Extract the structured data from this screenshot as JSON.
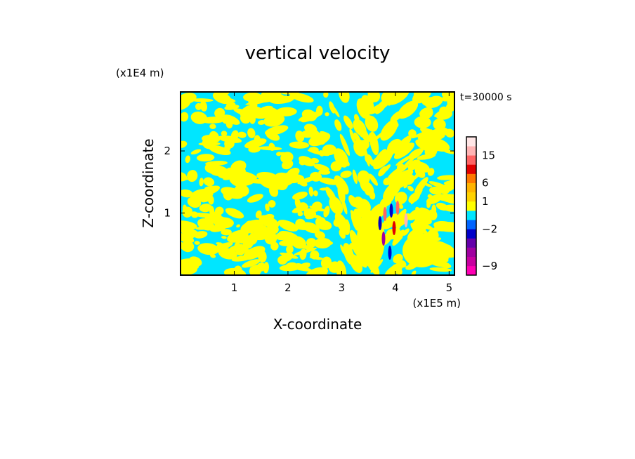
{
  "chart_data": {
    "type": "heatmap",
    "title": "vertical velocity",
    "xlabel": "X-coordinate",
    "ylabel": "Z-coordinate",
    "x_unit": "(x1E5 m)",
    "y_unit": "(x1E4 m)",
    "time_label": "t=30000 s",
    "xlim": [
      0,
      5.1
    ],
    "ylim": [
      0,
      2.95
    ],
    "x_ticks": [
      {
        "value": 1,
        "label": "1"
      },
      {
        "value": 2,
        "label": "2"
      },
      {
        "value": 3,
        "label": "3"
      },
      {
        "value": 4,
        "label": "4"
      },
      {
        "value": 5,
        "label": "5"
      }
    ],
    "y_ticks": [
      {
        "value": 1,
        "label": "1"
      },
      {
        "value": 2,
        "label": "2"
      }
    ],
    "colorbar": {
      "levels": [
        {
          "color": "#ff00b4"
        },
        {
          "color": "#c800a0"
        },
        {
          "color": "#a000a0"
        },
        {
          "color": "#6400aa"
        },
        {
          "color": "#0000c8"
        },
        {
          "color": "#0064ff"
        },
        {
          "color": "#00e6ff"
        },
        {
          "color": "#ffff00"
        },
        {
          "color": "#ffd200"
        },
        {
          "color": "#ffb400"
        },
        {
          "color": "#ff7800"
        },
        {
          "color": "#e10000"
        },
        {
          "color": "#ff6464"
        },
        {
          "color": "#ffb4b4"
        },
        {
          "color": "#ffe6e6"
        }
      ],
      "labels": [
        {
          "value": -9,
          "label": "−9"
        },
        {
          "value": -2,
          "label": "−2"
        },
        {
          "value": 1,
          "label": "1"
        },
        {
          "value": 6,
          "label": "6"
        },
        {
          "value": 15,
          "label": "15"
        }
      ]
    },
    "field": {
      "background": "#00e6ff",
      "positive_color": "#ffff00",
      "strong_negative_colors": [
        "#0000c8",
        "#6400aa",
        "#a000a0"
      ],
      "strong_positive_colors": [
        "#e10000",
        "#ff6464",
        "#ffb4b4"
      ]
    }
  }
}
